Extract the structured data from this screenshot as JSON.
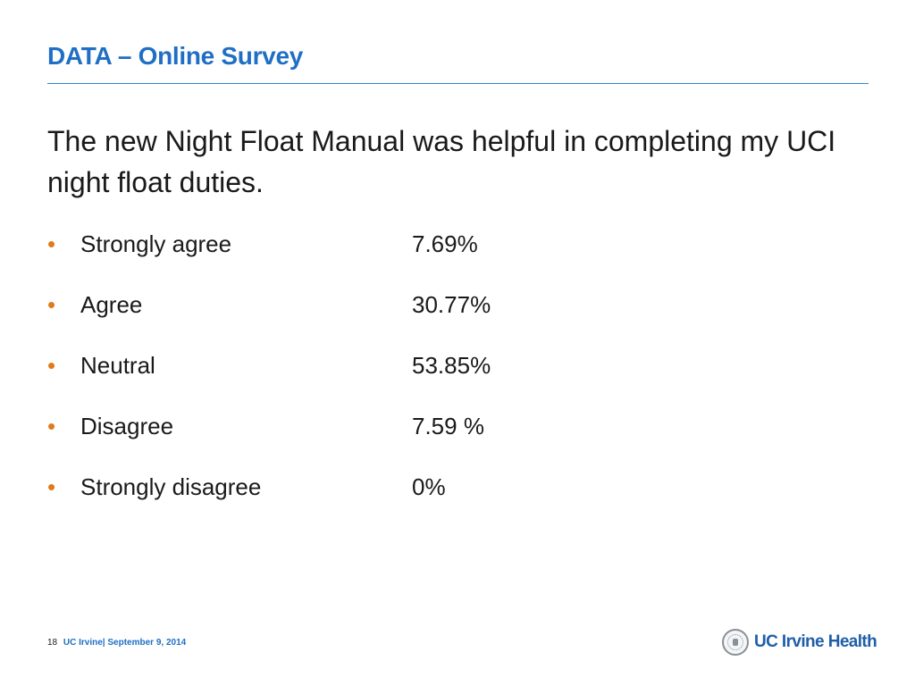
{
  "slide": {
    "title": "DATA – Online Survey",
    "question": "The new Night Float Manual was helpful in completing my UCI night float duties.",
    "bullet_symbol": "•",
    "responses": [
      {
        "label": "Strongly agree",
        "value": "7.69%"
      },
      {
        "label": "Agree",
        "value": "30.77%"
      },
      {
        "label": "Neutral",
        "value": "53.85%"
      },
      {
        "label": "Disagree",
        "value": "7.59 %"
      },
      {
        "label": "Strongly disagree",
        "value": "0%"
      }
    ]
  },
  "footer": {
    "page_number": "18",
    "text": "UC Irvine| September 9, 2014"
  },
  "logo": {
    "text": "UC Irvine Health",
    "icon": "university-seal-icon"
  },
  "colors": {
    "title": "#1f6fc5",
    "rule": "#2e86d4",
    "bullet": "#e07b1a",
    "body_text": "#1a1a1a",
    "logo_text": "#1f5fa8"
  }
}
